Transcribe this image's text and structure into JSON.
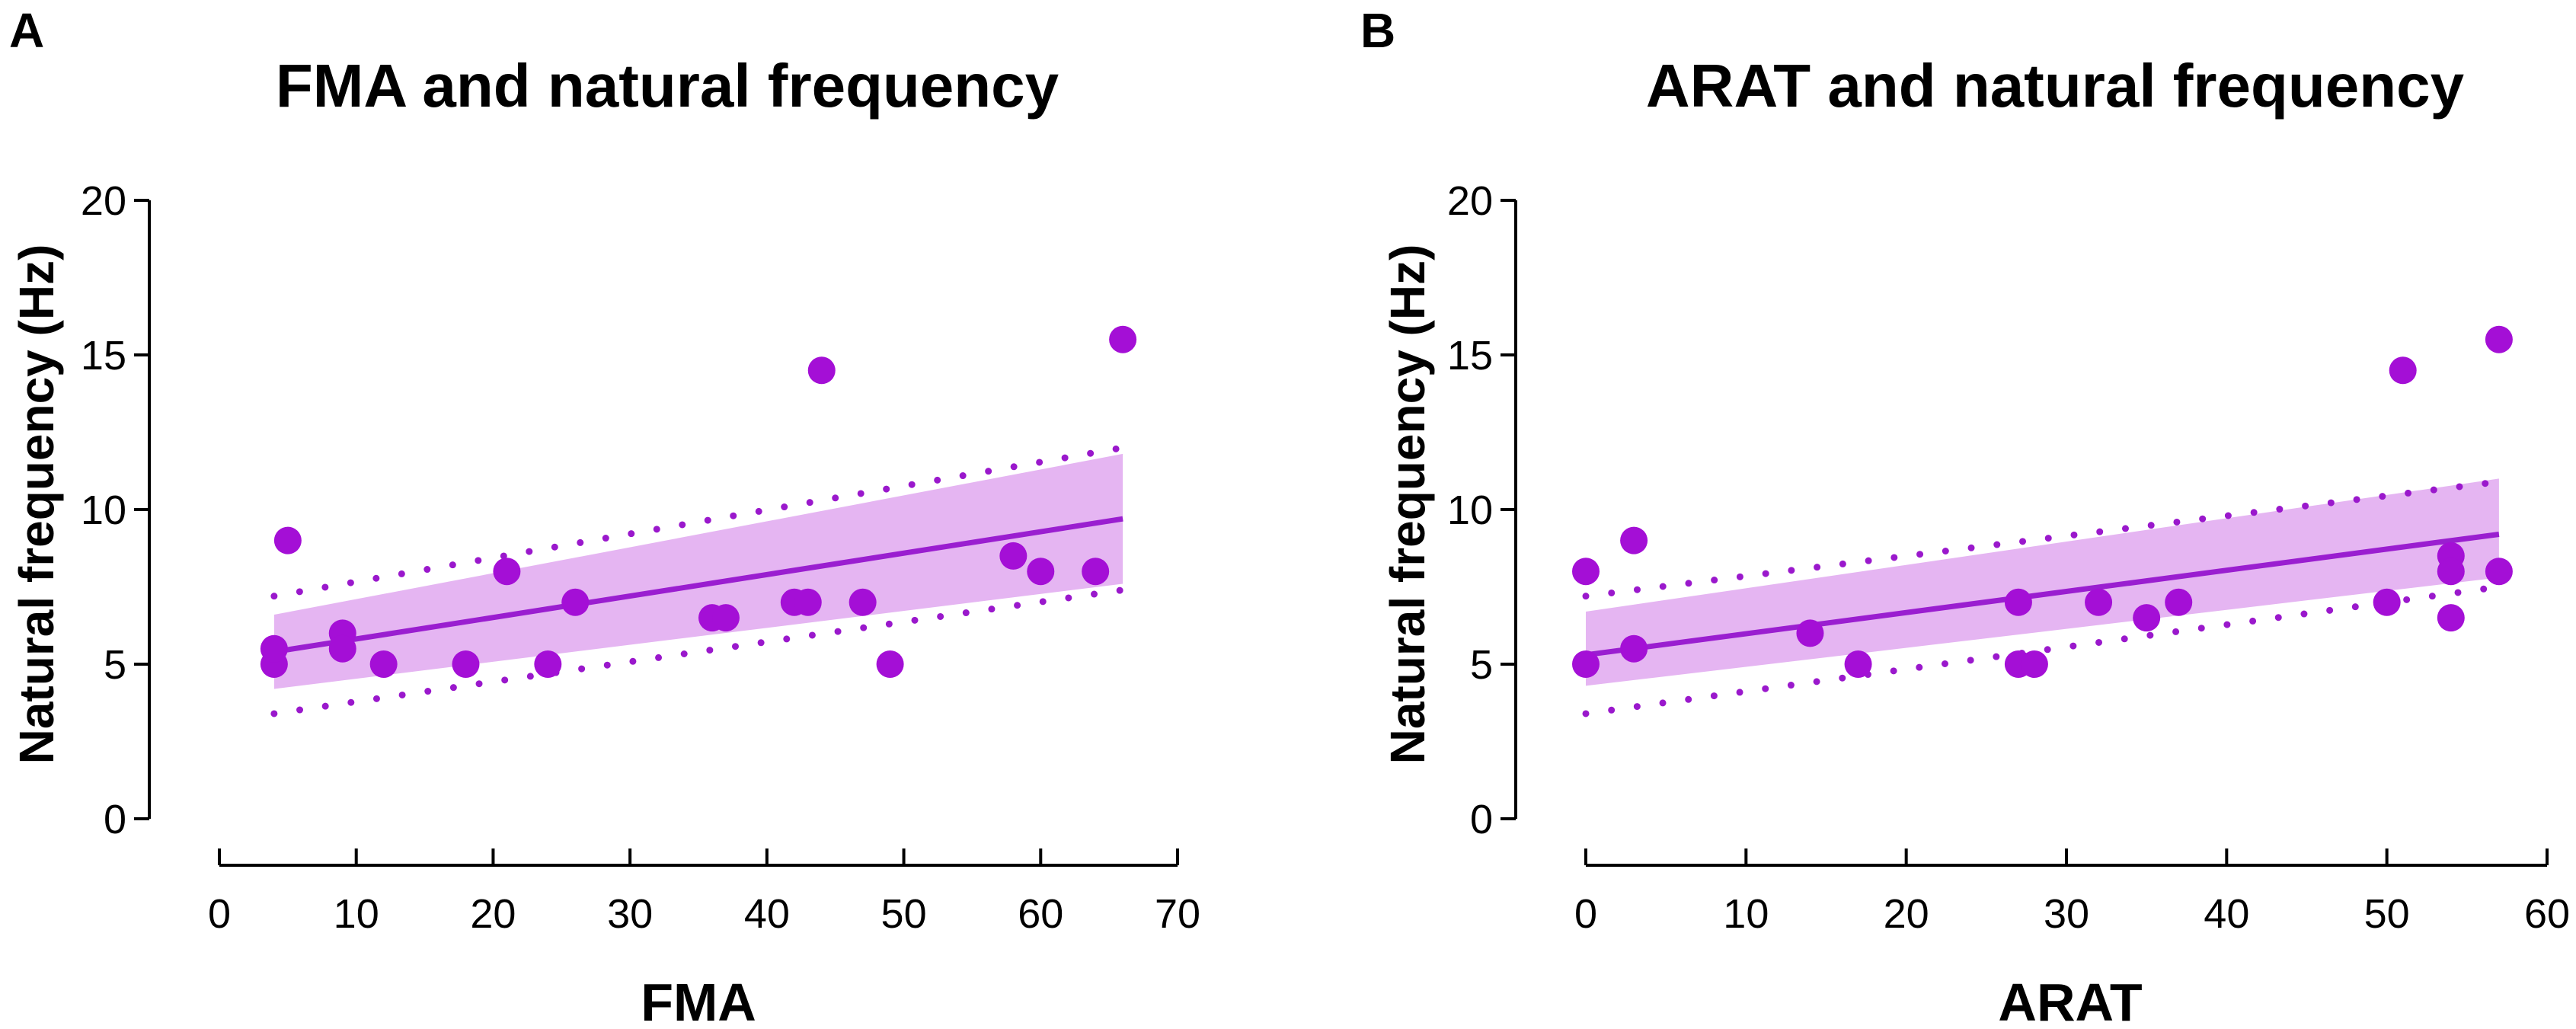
{
  "chart_data": [
    {
      "type": "scatter",
      "panel_label": "A",
      "title": "FMA and natural frequency",
      "xlabel": "FMA",
      "ylabel": "Natural frequency (Hz)",
      "xlim": [
        0,
        70
      ],
      "ylim": [
        0,
        20
      ],
      "xticks": [
        0,
        10,
        20,
        30,
        40,
        50,
        60,
        70
      ],
      "yticks": [
        0,
        5,
        10,
        15,
        20
      ],
      "points": {
        "x": [
          4,
          4,
          5,
          9,
          9,
          12,
          18,
          21,
          24,
          26,
          36,
          37,
          42,
          43,
          44,
          47,
          49,
          58,
          60,
          64,
          66
        ],
        "y": [
          5,
          5.5,
          9,
          6,
          5.5,
          5,
          5,
          8,
          5,
          7,
          6.5,
          6.5,
          7,
          7,
          14.5,
          7,
          5,
          8.5,
          8,
          8,
          15.5
        ]
      },
      "fit_line": {
        "x": [
          4,
          66
        ],
        "y": [
          5.4,
          9.7
        ]
      },
      "confidence_band": {
        "x": [
          4,
          66
        ],
        "lower": [
          4.2,
          7.6
        ],
        "upper": [
          6.6,
          11.8
        ]
      },
      "prediction_band": {
        "x": [
          4,
          66
        ],
        "lower": [
          3.4,
          7.4
        ],
        "upper": [
          7.2,
          12.0
        ]
      },
      "colors": {
        "point": "#a40fd6",
        "line": "#9a1ed0",
        "band": "#e5b5f2",
        "dots": "#9a18cc"
      }
    },
    {
      "type": "scatter",
      "panel_label": "B",
      "title": "ARAT and natural frequency",
      "xlabel": "ARAT",
      "ylabel": "Natural frequency (Hz)",
      "xlim": [
        0,
        60
      ],
      "ylim": [
        0,
        20
      ],
      "xticks": [
        0,
        10,
        20,
        30,
        40,
        50,
        60
      ],
      "yticks": [
        0,
        5,
        10,
        15,
        20
      ],
      "points": {
        "x": [
          0,
          0,
          3,
          3,
          14,
          17,
          27,
          27,
          28,
          32,
          35,
          37,
          50,
          51,
          54,
          54,
          54,
          57,
          57
        ],
        "y": [
          5,
          8,
          9,
          5.5,
          6,
          5,
          7,
          5,
          5,
          7,
          6.5,
          7,
          7,
          14.5,
          8.5,
          8,
          6.5,
          15.5,
          8
        ],
        "sizes": [
          1,
          1,
          1,
          1,
          1,
          1,
          1,
          1,
          1,
          1,
          1,
          1,
          1,
          1,
          1,
          1,
          1,
          1,
          1
        ]
      },
      "fit_line": {
        "x": [
          0,
          57
        ],
        "y": [
          5.3,
          9.2
        ]
      },
      "confidence_band": {
        "x": [
          0,
          57
        ],
        "lower": [
          4.3,
          7.8
        ],
        "upper": [
          6.7,
          11.0
        ]
      },
      "prediction_band": {
        "x": [
          0,
          57
        ],
        "lower": [
          3.4,
          7.5
        ],
        "upper": [
          7.2,
          10.9
        ]
      },
      "colors": {
        "point": "#a40fd6",
        "line": "#9a1ed0",
        "band": "#e5b5f2",
        "dots": "#9a18cc"
      }
    }
  ]
}
